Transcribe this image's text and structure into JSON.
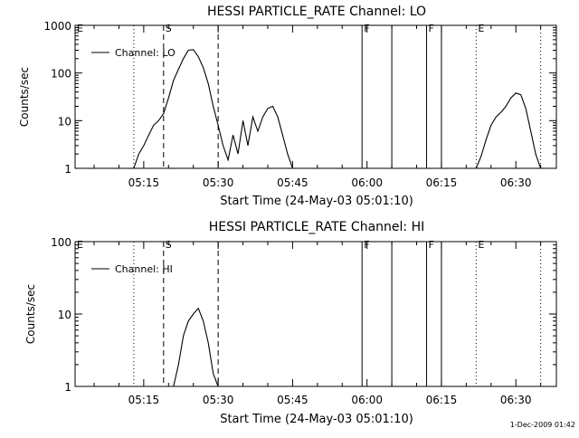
{
  "chart_data": [
    {
      "type": "line",
      "title": "HESSI PARTICLE_RATE Channel: LO",
      "xlabel": "Start Time (24-May-03 05:01:10)",
      "ylabel": "Counts/sec",
      "y_scale": "log",
      "ylim": [
        1,
        1000
      ],
      "xlim_minutes_after_0501": [
        0,
        97
      ],
      "x_ticks": [
        "05:15",
        "05:30",
        "05:45",
        "06:00",
        "06:15",
        "06:30"
      ],
      "y_ticks": [
        "1",
        "10",
        "100",
        "1000"
      ],
      "legend": {
        "label": "Channel: LO",
        "position": "top-left"
      },
      "markers": [
        {
          "letter": "E",
          "time": "05:01",
          "style": "none"
        },
        {
          "letter": "",
          "time": "05:13",
          "style": "dotted"
        },
        {
          "letter": "S",
          "time": "05:19",
          "style": "dashed"
        },
        {
          "letter": "",
          "time": "05:30",
          "style": "dashed"
        },
        {
          "letter": "F",
          "time": "05:59",
          "style": "solid"
        },
        {
          "letter": "",
          "time": "06:05",
          "style": "solid"
        },
        {
          "letter": "F",
          "time": "06:12",
          "style": "solid"
        },
        {
          "letter": "",
          "time": "06:15",
          "style": "solid"
        },
        {
          "letter": "E",
          "time": "06:22",
          "style": "dotted"
        },
        {
          "letter": "",
          "time": "06:35",
          "style": "dotted"
        }
      ],
      "series": [
        {
          "name": "Channel: LO",
          "points": [
            [
              "05:13",
              1
            ],
            [
              "05:14",
              2
            ],
            [
              "05:15",
              3
            ],
            [
              "05:16",
              5
            ],
            [
              "05:17",
              8
            ],
            [
              "05:18",
              10
            ],
            [
              "05:19",
              14
            ],
            [
              "05:20",
              30
            ],
            [
              "05:21",
              70
            ],
            [
              "05:22",
              120
            ],
            [
              "05:23",
              200
            ],
            [
              "05:24",
              300
            ],
            [
              "05:25",
              310
            ],
            [
              "05:26",
              220
            ],
            [
              "05:27",
              130
            ],
            [
              "05:28",
              60
            ],
            [
              "05:29",
              20
            ],
            [
              "05:30",
              8
            ],
            [
              "05:31",
              3
            ],
            [
              "05:32",
              1.5
            ],
            [
              "05:33",
              5
            ],
            [
              "05:34",
              2
            ],
            [
              "05:35",
              10
            ],
            [
              "05:36",
              3
            ],
            [
              "05:37",
              12
            ],
            [
              "05:38",
              6
            ],
            [
              "05:39",
              12
            ],
            [
              "05:40",
              18
            ],
            [
              "05:41",
              20
            ],
            [
              "05:42",
              12
            ],
            [
              "05:43",
              5
            ],
            [
              "05:44",
              2
            ],
            [
              "05:45",
              1
            ],
            [
              "06:22",
              1
            ],
            [
              "06:23",
              1.8
            ],
            [
              "06:24",
              4
            ],
            [
              "06:25",
              8
            ],
            [
              "06:26",
              12
            ],
            [
              "06:27",
              15
            ],
            [
              "06:28",
              20
            ],
            [
              "06:29",
              30
            ],
            [
              "06:30",
              38
            ],
            [
              "06:31",
              35
            ],
            [
              "06:32",
              18
            ],
            [
              "06:33",
              6
            ],
            [
              "06:34",
              2
            ],
            [
              "06:35",
              1
            ]
          ]
        }
      ]
    },
    {
      "type": "line",
      "title": "HESSI PARTICLE_RATE Channel: HI",
      "xlabel": "Start Time (24-May-03 05:01:10)",
      "ylabel": "Counts/sec",
      "y_scale": "log",
      "ylim": [
        1,
        100
      ],
      "xlim_minutes_after_0501": [
        0,
        97
      ],
      "x_ticks": [
        "05:15",
        "05:30",
        "05:45",
        "06:00",
        "06:15",
        "06:30"
      ],
      "y_ticks": [
        "1",
        "10",
        "100"
      ],
      "legend": {
        "label": "Channel: HI",
        "position": "top-left"
      },
      "markers": [
        {
          "letter": "E",
          "time": "05:01",
          "style": "none"
        },
        {
          "letter": "",
          "time": "05:13",
          "style": "dotted"
        },
        {
          "letter": "S",
          "time": "05:19",
          "style": "dashed"
        },
        {
          "letter": "",
          "time": "05:30",
          "style": "dashed"
        },
        {
          "letter": "F",
          "time": "05:59",
          "style": "solid"
        },
        {
          "letter": "",
          "time": "06:05",
          "style": "solid"
        },
        {
          "letter": "F",
          "time": "06:12",
          "style": "solid"
        },
        {
          "letter": "",
          "time": "06:15",
          "style": "solid"
        },
        {
          "letter": "E",
          "time": "06:22",
          "style": "dotted"
        },
        {
          "letter": "",
          "time": "06:35",
          "style": "dotted"
        }
      ],
      "series": [
        {
          "name": "Channel: HI",
          "points": [
            [
              "05:21",
              1
            ],
            [
              "05:22",
              2
            ],
            [
              "05:23",
              5
            ],
            [
              "05:24",
              8
            ],
            [
              "05:25",
              10
            ],
            [
              "05:26",
              12
            ],
            [
              "05:27",
              8
            ],
            [
              "05:28",
              4
            ],
            [
              "05:29",
              1.5
            ],
            [
              "05:30",
              1
            ]
          ]
        }
      ]
    }
  ],
  "footer_date": "1-Dec-2009 01:42"
}
